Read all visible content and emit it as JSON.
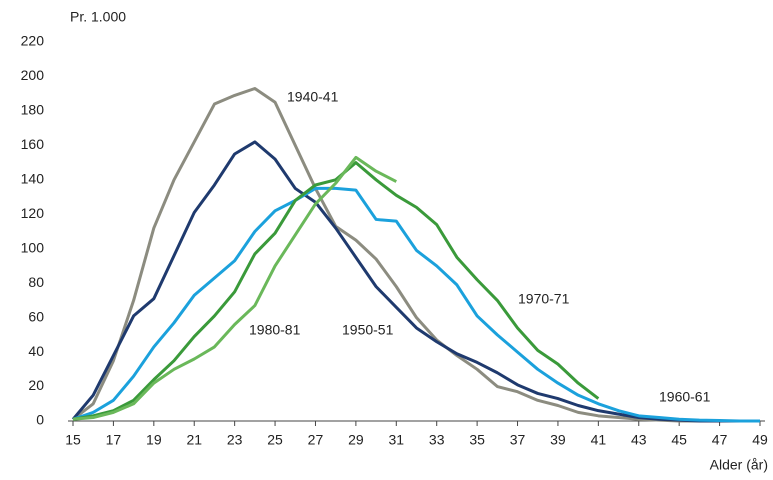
{
  "chart_data": {
    "type": "line",
    "y_label": "Pr. 1.000",
    "x_label": "Alder (år)",
    "x": [
      15,
      16,
      17,
      18,
      19,
      20,
      21,
      22,
      23,
      24,
      25,
      26,
      27,
      28,
      29,
      30,
      31,
      32,
      33,
      34,
      35,
      36,
      37,
      38,
      39,
      40,
      41,
      42,
      43,
      44,
      45,
      46,
      47,
      48,
      49
    ],
    "xlim": [
      15,
      49
    ],
    "xticks": [
      15,
      17,
      19,
      21,
      23,
      25,
      27,
      29,
      31,
      33,
      35,
      37,
      39,
      41,
      43,
      45,
      47,
      49
    ],
    "ylim": [
      0,
      220
    ],
    "yticks": [
      0,
      20,
      40,
      60,
      80,
      100,
      120,
      140,
      160,
      180,
      200,
      220
    ],
    "series": [
      {
        "name": "1940-41",
        "color": "#8c8c80",
        "values": [
          1,
          10,
          35,
          70,
          112,
          140,
          162,
          184,
          189,
          193,
          185,
          160,
          135,
          113,
          105,
          94,
          78,
          60,
          47,
          38,
          30,
          20,
          17,
          12,
          9,
          5,
          3,
          2,
          1,
          0.5,
          0,
          0,
          0,
          0,
          0
        ]
      },
      {
        "name": "1950-51",
        "color": "#1f3a6e",
        "values": [
          1,
          15,
          38,
          61,
          71,
          96,
          121,
          137,
          155,
          162,
          152,
          135,
          127,
          112,
          95,
          78,
          66,
          54,
          46,
          39,
          34,
          28,
          21,
          16,
          13,
          9,
          6,
          4,
          2,
          1,
          0.5,
          0,
          0,
          0,
          0
        ]
      },
      {
        "name": "1960-61",
        "color": "#1ba1dc",
        "values": [
          1,
          5,
          12,
          26,
          43,
          57,
          73,
          83,
          93,
          110,
          122,
          128,
          135,
          135,
          134,
          117,
          116,
          99,
          90,
          79,
          61,
          50,
          40,
          30,
          22,
          15,
          10,
          6,
          3,
          2,
          1,
          0.5,
          0.3,
          0,
          0
        ]
      },
      {
        "name": "1970-71",
        "color": "#3a9a3a",
        "values": [
          1,
          3,
          6,
          12,
          24,
          35,
          49,
          61,
          75,
          97,
          109,
          128,
          137,
          140,
          150,
          140,
          131,
          124,
          114,
          95,
          82,
          70,
          54,
          41,
          33,
          22,
          13,
          null,
          null,
          null,
          null,
          null,
          null,
          null,
          null
        ]
      },
      {
        "name": "1980-81",
        "color": "#6ab85a",
        "values": [
          1,
          2,
          5,
          10,
          22,
          30,
          36,
          43,
          56,
          67,
          90,
          108,
          126,
          138,
          153,
          145,
          139,
          null,
          null,
          null,
          null,
          null,
          null,
          null,
          null,
          null,
          null,
          null,
          null,
          null,
          null,
          null,
          null,
          null,
          null
        ]
      }
    ]
  }
}
